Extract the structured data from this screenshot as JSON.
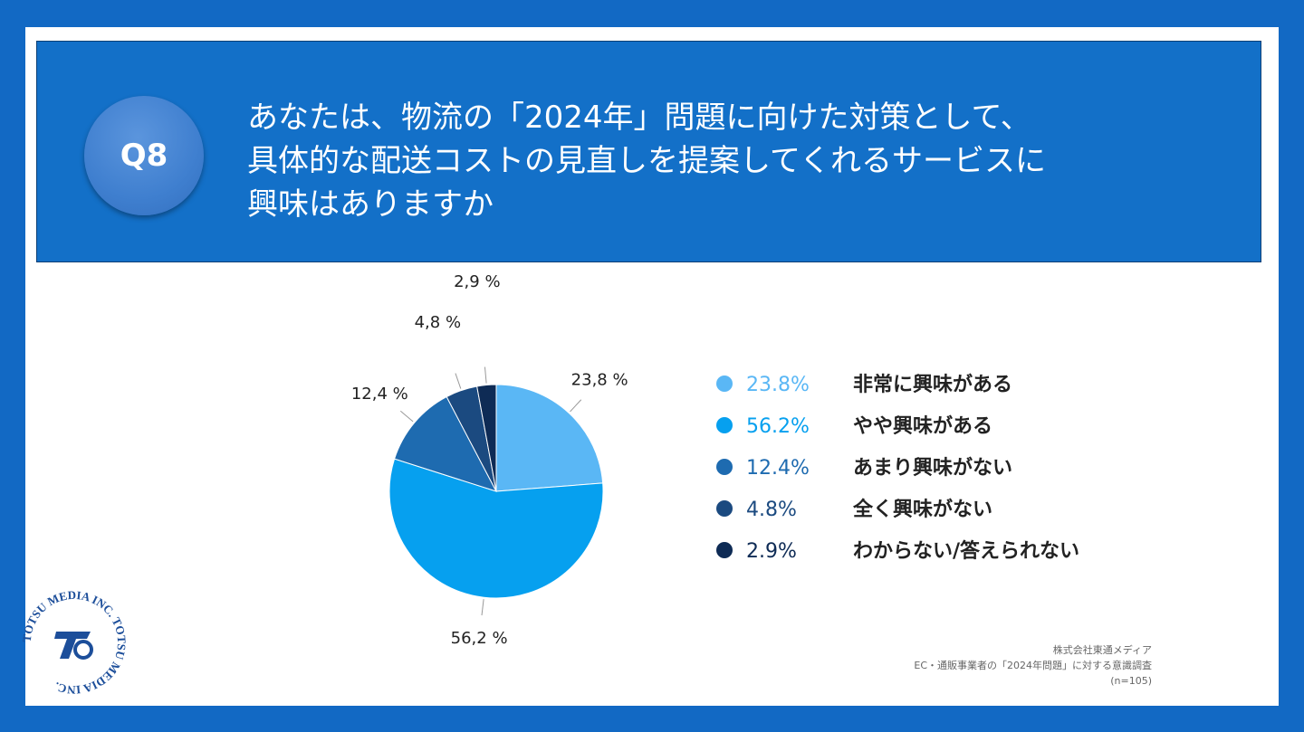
{
  "header": {
    "badge": "Q8",
    "question_lines": [
      "あなたは、物流の「2024年」問題に向けた対策として、",
      "具体的な配送コストの見直しを提案してくれるサービスに",
      "興味はありますか"
    ]
  },
  "chart_data": {
    "type": "pie",
    "slices": [
      {
        "label": "非常に興味がある",
        "value": 23.8,
        "pie_label": "23,8 %",
        "legend_pct": "23.8%",
        "color": "#5ab7f5"
      },
      {
        "label": "やや興味がある",
        "value": 56.2,
        "pie_label": "56,2 %",
        "legend_pct": "56.2%",
        "color": "#06a0ef"
      },
      {
        "label": "あまり興味がない",
        "value": 12.4,
        "pie_label": "12,4 %",
        "legend_pct": "12.4%",
        "color": "#1e6bb0"
      },
      {
        "label": "全く興味がない",
        "value": 4.8,
        "pie_label": "4,8 %",
        "legend_pct": "4.8%",
        "color": "#1b4a80"
      },
      {
        "label": "わからない/答えられない",
        "value": 2.9,
        "pie_label": "2,9 %",
        "legend_pct": "2.9%",
        "color": "#0e2b55"
      }
    ],
    "legend_placement": "right"
  },
  "source": {
    "company": "株式会社東通メディア",
    "survey": "EC・通販事業者の「2024年問題」に対する意識調査",
    "sample": "(n=105)"
  },
  "logo": {
    "text": "TOTSU MEDIA INC. TOTSU MEDIA INC."
  }
}
